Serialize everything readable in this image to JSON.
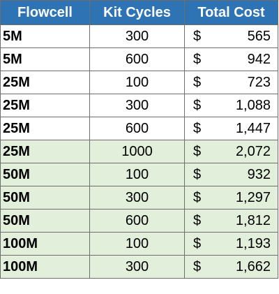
{
  "table": {
    "headers": [
      "Flowcell",
      "Kit Cycles",
      "Total Cost"
    ],
    "currency_symbol": "$",
    "colors": {
      "header_bg": "#2e74b5",
      "header_text": "#ffffff",
      "row_white": "#ffffff",
      "row_green": "#e2efda",
      "border": "#6d6d6d"
    },
    "rows": [
      {
        "flowcell": "5M",
        "cycles": "300",
        "cost": "565",
        "group": "a"
      },
      {
        "flowcell": "5M",
        "cycles": "600",
        "cost": "942",
        "group": "a"
      },
      {
        "flowcell": "25M",
        "cycles": "100",
        "cost": "723",
        "group": "a"
      },
      {
        "flowcell": "25M",
        "cycles": "300",
        "cost": "1,088",
        "group": "a"
      },
      {
        "flowcell": "25M",
        "cycles": "600",
        "cost": "1,447",
        "group": "a"
      },
      {
        "flowcell": "25M",
        "cycles": "1000",
        "cost": "2,072",
        "group": "b"
      },
      {
        "flowcell": "50M",
        "cycles": "100",
        "cost": "932",
        "group": "b"
      },
      {
        "flowcell": "50M",
        "cycles": "300",
        "cost": "1,297",
        "group": "b"
      },
      {
        "flowcell": "50M",
        "cycles": "600",
        "cost": "1,812",
        "group": "b"
      },
      {
        "flowcell": "100M",
        "cycles": "100",
        "cost": "1,193",
        "group": "b"
      },
      {
        "flowcell": "100M",
        "cycles": "300",
        "cost": "1,662",
        "group": "b"
      }
    ]
  }
}
